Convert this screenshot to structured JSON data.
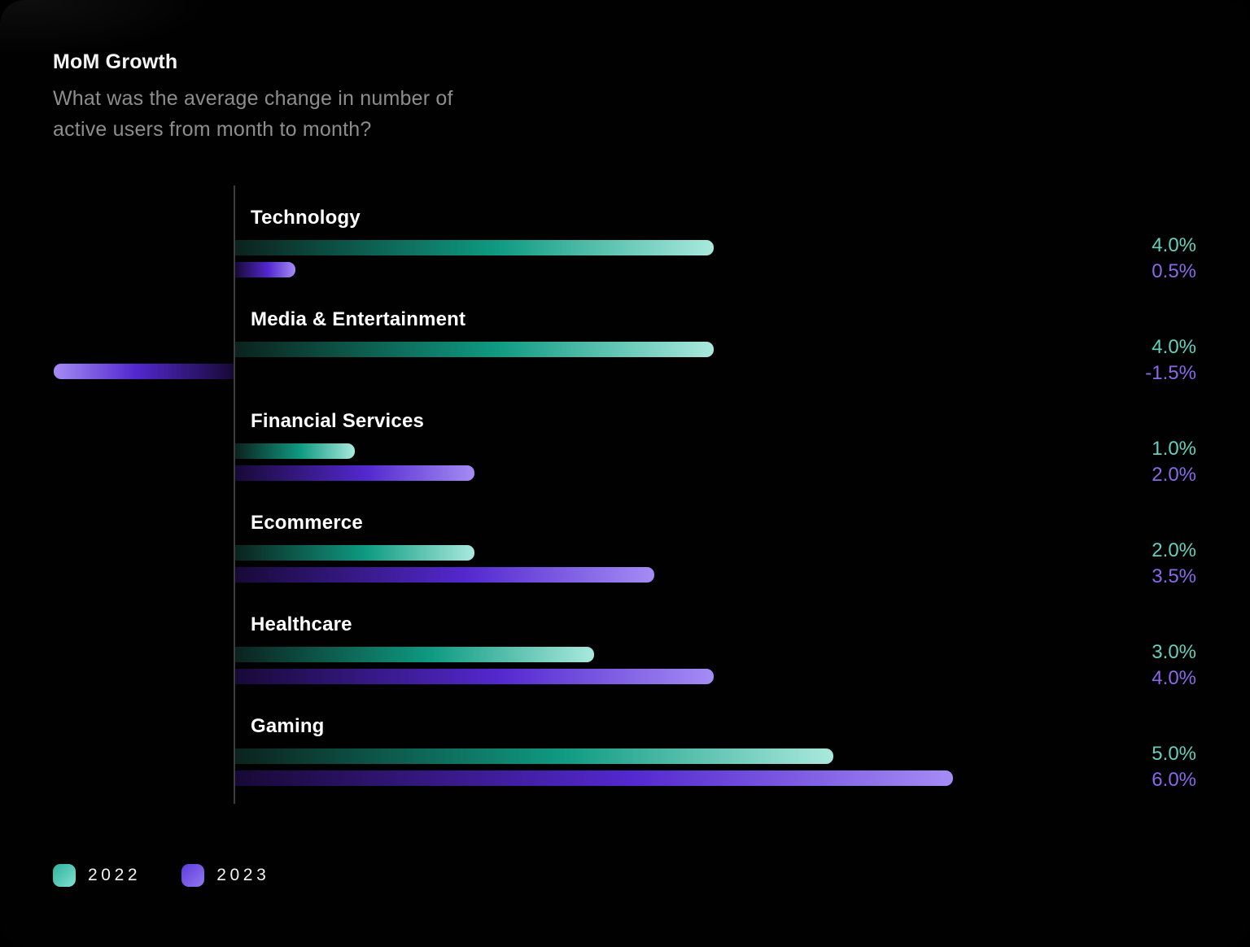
{
  "header": {
    "title": "MoM Growth",
    "subtitle_line1": "What was the average change in number of",
    "subtitle_line2": "active users from month to month?"
  },
  "chart_data": {
    "type": "bar",
    "orientation": "horizontal",
    "title": "MoM Growth",
    "categories": [
      "Technology",
      "Media & Entertainment",
      "Financial Services",
      "Ecommerce",
      "Healthcare",
      "Gaming"
    ],
    "series": [
      {
        "name": "2022",
        "values": [
          4.0,
          4.0,
          1.0,
          2.0,
          3.0,
          5.0
        ],
        "label_color": "#63cfbc",
        "gradient": [
          "#0b221d",
          "#0f9b82",
          "#a9e9dd"
        ],
        "legend_gradient": [
          "#2eb19b",
          "#82e0d2"
        ]
      },
      {
        "name": "2023",
        "values": [
          0.5,
          -1.5,
          2.0,
          3.5,
          4.0,
          6.0
        ],
        "label_color": "#8a68ea",
        "gradient": [
          "#170936",
          "#5328cf",
          "#a48cf4"
        ],
        "legend_gradient": [
          "#5f3ade",
          "#9279ee"
        ]
      }
    ],
    "value_labels": [
      [
        "4.0%",
        "0.5%"
      ],
      [
        "4.0%",
        "-1.5%"
      ],
      [
        "1.0%",
        "2.0%"
      ],
      [
        "2.0%",
        "3.5%"
      ],
      [
        "3.0%",
        "4.0%"
      ],
      [
        "5.0%",
        "6.0%"
      ]
    ],
    "xlim": [
      -1.5,
      6
    ],
    "grid": false,
    "legend_position": "bottom-left",
    "axis_color": "#3d3d3d",
    "background": "#000000"
  },
  "legend": {
    "items": [
      {
        "label": "2022"
      },
      {
        "label": "2023"
      }
    ]
  }
}
